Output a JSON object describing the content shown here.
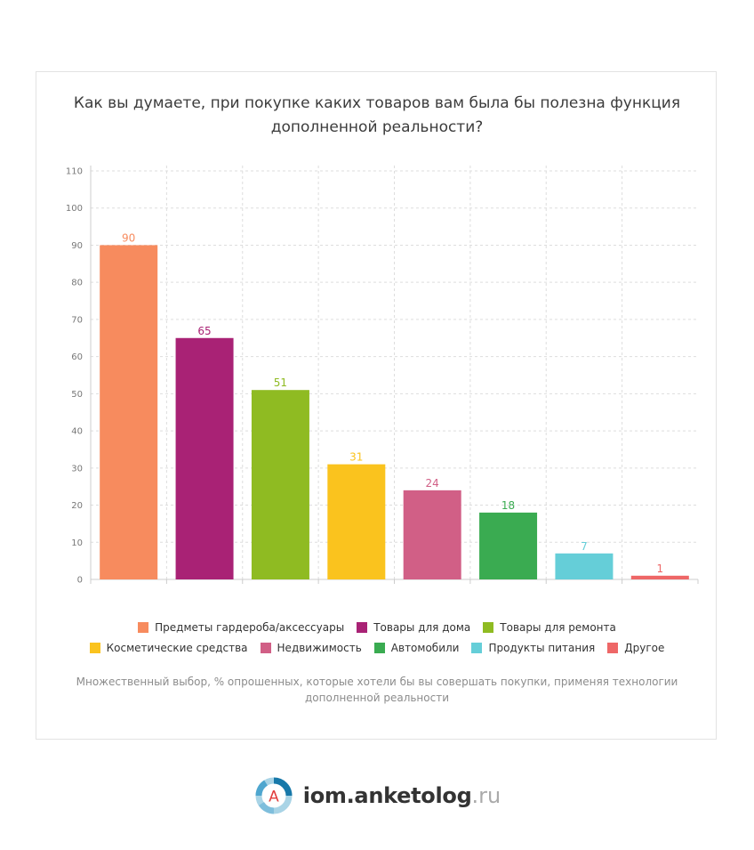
{
  "chart_data": {
    "type": "bar",
    "title": "Как вы думаете, при покупке каких товаров вам была бы полезна функция дополненной реальности?",
    "categories": [
      "Предметы гардероба/аксессуары",
      "Товары для дома",
      "Товары для ремонта",
      "Косметические средства",
      "Недвижимость",
      "Автомобили",
      "Продукты питания",
      "Другое"
    ],
    "values": [
      90,
      65,
      51,
      31,
      24,
      18,
      7,
      1
    ],
    "colors": [
      "#f78b5e",
      "#a92275",
      "#8fbb22",
      "#fac31e",
      "#d15f86",
      "#3aab51",
      "#65ced8",
      "#ee6767"
    ],
    "ylim": [
      0,
      110
    ],
    "yticks": [
      0,
      10,
      20,
      30,
      40,
      50,
      60,
      70,
      80,
      90,
      100,
      110
    ],
    "grid": true,
    "legend_position": "bottom",
    "note": "Множественный выбор, % опрошенных, которые хотели бы вы совершать покупки, применяя технологии дополненной реальности"
  },
  "footer": {
    "logo_letter": "A",
    "brand": "iom.anketolog",
    "brand_suffix": ".ru"
  }
}
